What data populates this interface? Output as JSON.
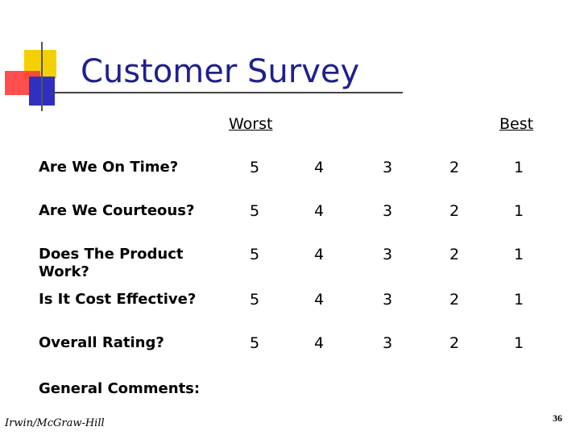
{
  "title": "Customer Survey",
  "scale": {
    "worst_label": "Worst",
    "best_label": "Best"
  },
  "questions": [
    {
      "label": "Are We On Time?",
      "options": [
        "5",
        "4",
        "3",
        "2",
        "1"
      ]
    },
    {
      "label": "Are We Courteous?",
      "options": [
        "5",
        "4",
        "3",
        "2",
        "1"
      ]
    },
    {
      "label": "Does The Product Work?",
      "options": [
        "5",
        "4",
        "3",
        "2",
        "1"
      ]
    },
    {
      "label": "Is It Cost Effective?",
      "options": [
        "5",
        "4",
        "3",
        "2",
        "1"
      ]
    },
    {
      "label": "Overall Rating?",
      "options": [
        "5",
        "4",
        "3",
        "2",
        "1"
      ]
    }
  ],
  "comments_label": "General Comments:",
  "footer": {
    "publisher": "Irwin/McGraw-Hill",
    "page_number": "36"
  },
  "colors": {
    "title": "#1f1f8f",
    "logo_yellow": "#f5d000",
    "logo_red": "#ff3030",
    "logo_blue": "#3030c0"
  },
  "icons": {
    "logo": "slide-template-logo-icon"
  }
}
